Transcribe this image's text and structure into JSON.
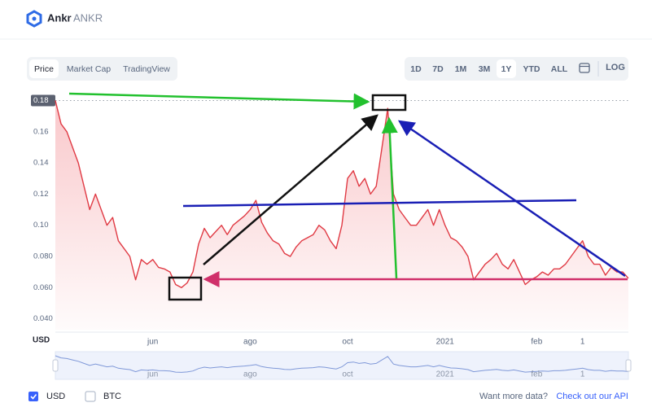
{
  "header": {
    "name": "Ankr",
    "symbol": "ANKR"
  },
  "tabs": [
    "Price",
    "Market Cap",
    "TradingView"
  ],
  "ranges": [
    "1D",
    "7D",
    "1M",
    "3M",
    "1Y",
    "YTD",
    "ALL"
  ],
  "log_label": "LOG",
  "chart_data": {
    "type": "line",
    "ylabel": "USD",
    "color": "#e03a44",
    "categories": [
      null,
      null,
      null,
      null,
      null,
      null,
      null,
      null,
      null,
      null,
      null,
      null,
      null,
      null,
      null,
      null,
      null,
      "jun",
      null,
      null,
      null,
      null,
      null,
      null,
      null,
      null,
      null,
      null,
      null,
      null,
      null,
      null,
      null,
      null,
      "ago",
      null,
      null,
      null,
      null,
      null,
      null,
      null,
      null,
      null,
      null,
      null,
      null,
      null,
      null,
      null,
      null,
      "oct",
      null,
      null,
      null,
      null,
      null,
      null,
      null,
      null,
      null,
      null,
      null,
      null,
      null,
      null,
      null,
      null,
      "2021",
      null,
      null,
      null,
      null,
      null,
      null,
      null,
      null,
      null,
      null,
      null,
      null,
      null,
      null,
      null,
      "feb",
      null,
      null,
      null,
      null,
      null,
      null,
      null,
      "1",
      null,
      null,
      null,
      null,
      null,
      null,
      null,
      null
    ],
    "values": [
      0.18,
      0.165,
      0.16,
      0.15,
      0.14,
      0.125,
      0.11,
      0.12,
      0.11,
      0.1,
      0.105,
      0.09,
      0.085,
      0.08,
      0.065,
      0.078,
      0.075,
      0.078,
      0.073,
      0.072,
      0.07,
      0.062,
      0.06,
      0.063,
      0.07,
      0.088,
      0.098,
      0.092,
      0.096,
      0.1,
      0.094,
      0.1,
      0.103,
      0.106,
      0.11,
      0.116,
      0.102,
      0.095,
      0.09,
      0.088,
      0.082,
      0.08,
      0.086,
      0.09,
      0.092,
      0.094,
      0.1,
      0.097,
      0.09,
      0.085,
      0.1,
      0.13,
      0.135,
      0.125,
      0.13,
      0.12,
      0.125,
      0.15,
      0.175,
      0.12,
      0.11,
      0.105,
      0.1,
      0.1,
      0.105,
      0.11,
      0.1,
      0.11,
      0.1,
      0.092,
      0.09,
      0.086,
      0.08,
      0.065,
      0.07,
      0.075,
      0.078,
      0.082,
      0.075,
      0.072,
      0.078,
      0.07,
      0.062,
      0.065,
      0.067,
      0.07,
      0.068,
      0.072,
      0.072,
      0.075,
      0.08,
      0.085,
      0.09,
      0.08,
      0.075,
      0.075,
      0.068,
      0.073,
      0.07,
      0.07,
      0.066
    ],
    "ylim": [
      0.033,
      0.186
    ],
    "yticks": [
      {
        "value": 0.04,
        "label": "0.040"
      },
      {
        "value": 0.06,
        "label": "0.060"
      },
      {
        "value": 0.08,
        "label": "0.080"
      },
      {
        "value": 0.1,
        "label": "0.10"
      },
      0.12,
      0.14,
      0.16,
      0.18
    ],
    "grid": false
  },
  "footer": {
    "currencies": [
      "USD",
      "BTC"
    ],
    "prompt": "Want more data?",
    "link": "Check out our API"
  }
}
